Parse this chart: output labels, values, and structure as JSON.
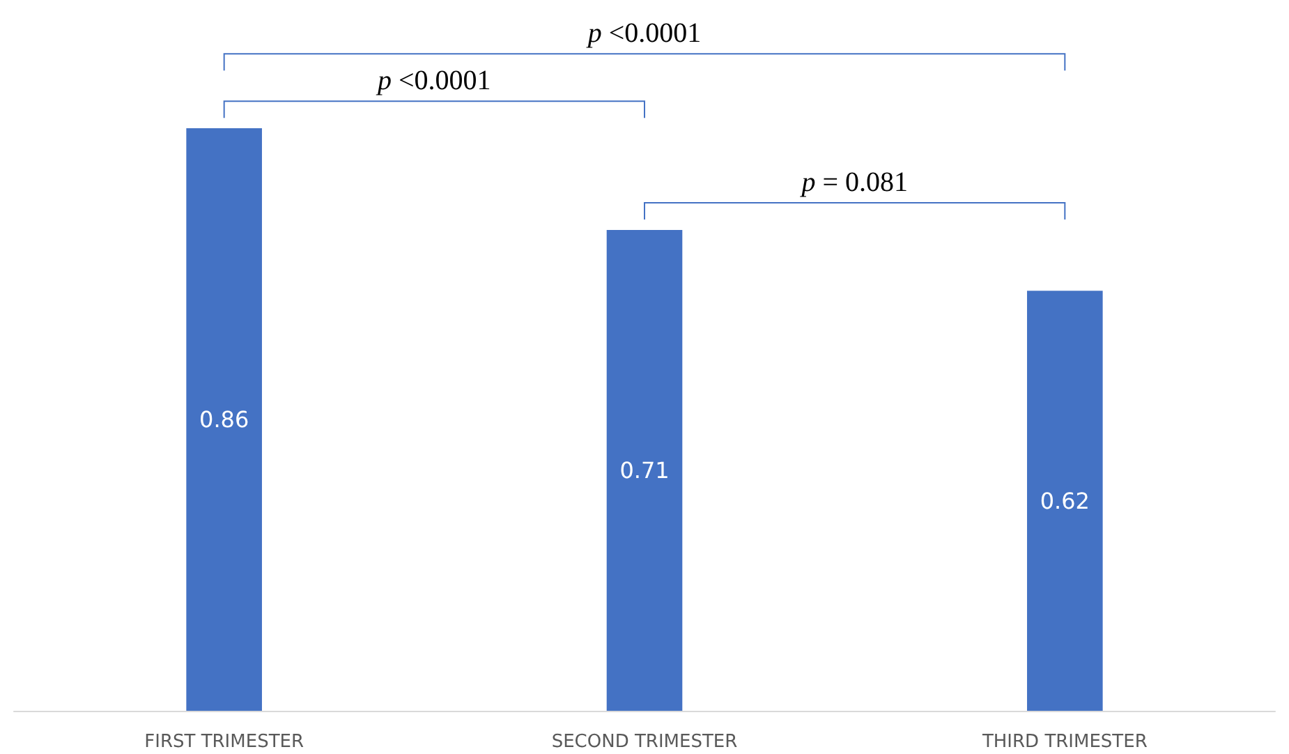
{
  "chart_data": {
    "type": "bar",
    "categories": [
      "FIRST TRIMESTER",
      "SECOND TRIMESTER",
      "THIRD TRIMESTER"
    ],
    "values": [
      0.86,
      0.71,
      0.62
    ],
    "color": "#4472c4",
    "data_labels": true,
    "annotations": [
      "p <0.0001",
      "p <0.0001",
      "p = 0.081"
    ]
  }
}
